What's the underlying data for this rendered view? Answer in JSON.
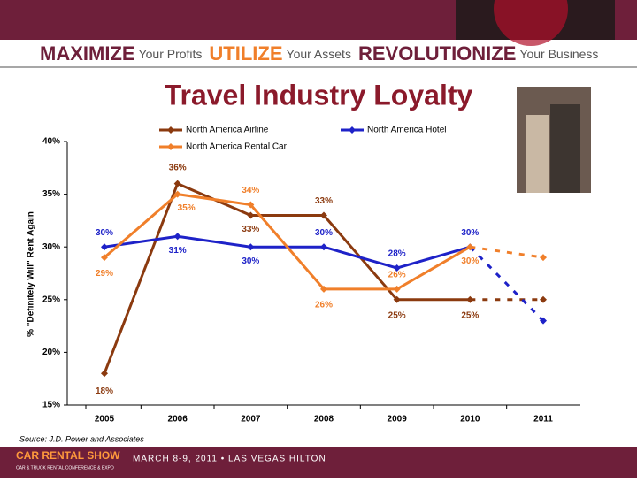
{
  "header": {
    "tagline": [
      [
        "MAXIMIZE",
        "Your Profits"
      ],
      [
        "UTILIZE",
        "Your Assets"
      ],
      [
        "REVOLUTIONIZE",
        "Your Business"
      ]
    ]
  },
  "chart_data": {
    "type": "line",
    "title": "Travel Industry Loyalty",
    "y_label": "% \"Definitely Will\" Rent Again",
    "source": "Source:  J.D. Power and Associates",
    "categories": [
      "2005",
      "2006",
      "2007",
      "2008",
      "2009",
      "2010",
      "2011"
    ],
    "dashed_after": "2010",
    "ylim": [
      15,
      40
    ],
    "yticks": [
      {
        "value": 15,
        "label": "15%"
      },
      {
        "value": 20,
        "label": "20%"
      },
      {
        "value": 25,
        "label": "25%"
      },
      {
        "value": 30,
        "label": "30%"
      },
      {
        "value": 35,
        "label": "35%"
      },
      {
        "value": 40,
        "label": "40%"
      }
    ],
    "series": [
      {
        "name": "North America Airline",
        "color": "#8b3a0f",
        "values": [
          18,
          36,
          33,
          33,
          25,
          25,
          25
        ],
        "value_labels": [
          "18%",
          "36%",
          "33%",
          "33%",
          "25%",
          "25%",
          null
        ]
      },
      {
        "name": "North America Hotel",
        "color": "#1e22c8",
        "values": [
          30,
          31,
          30,
          30,
          28,
          30,
          23
        ],
        "value_labels": [
          "30%",
          "31%",
          "30%",
          "30%",
          "28%",
          "30%",
          null
        ]
      },
      {
        "name": "North America Rental Car",
        "color": "#f07f2a",
        "values": [
          29,
          35,
          34,
          26,
          26,
          30,
          29
        ],
        "value_labels": [
          "29%",
          "35%",
          "34%",
          "26%",
          "26%",
          "30%",
          null
        ]
      }
    ]
  },
  "footer": {
    "brand": "CAR RENTAL SHOW",
    "brand_sub": "CAR & TRUCK RENTAL CONFERENCE & EXPO",
    "event": "MARCH 8-9, 2011 • LAS VEGAS HILTON"
  }
}
